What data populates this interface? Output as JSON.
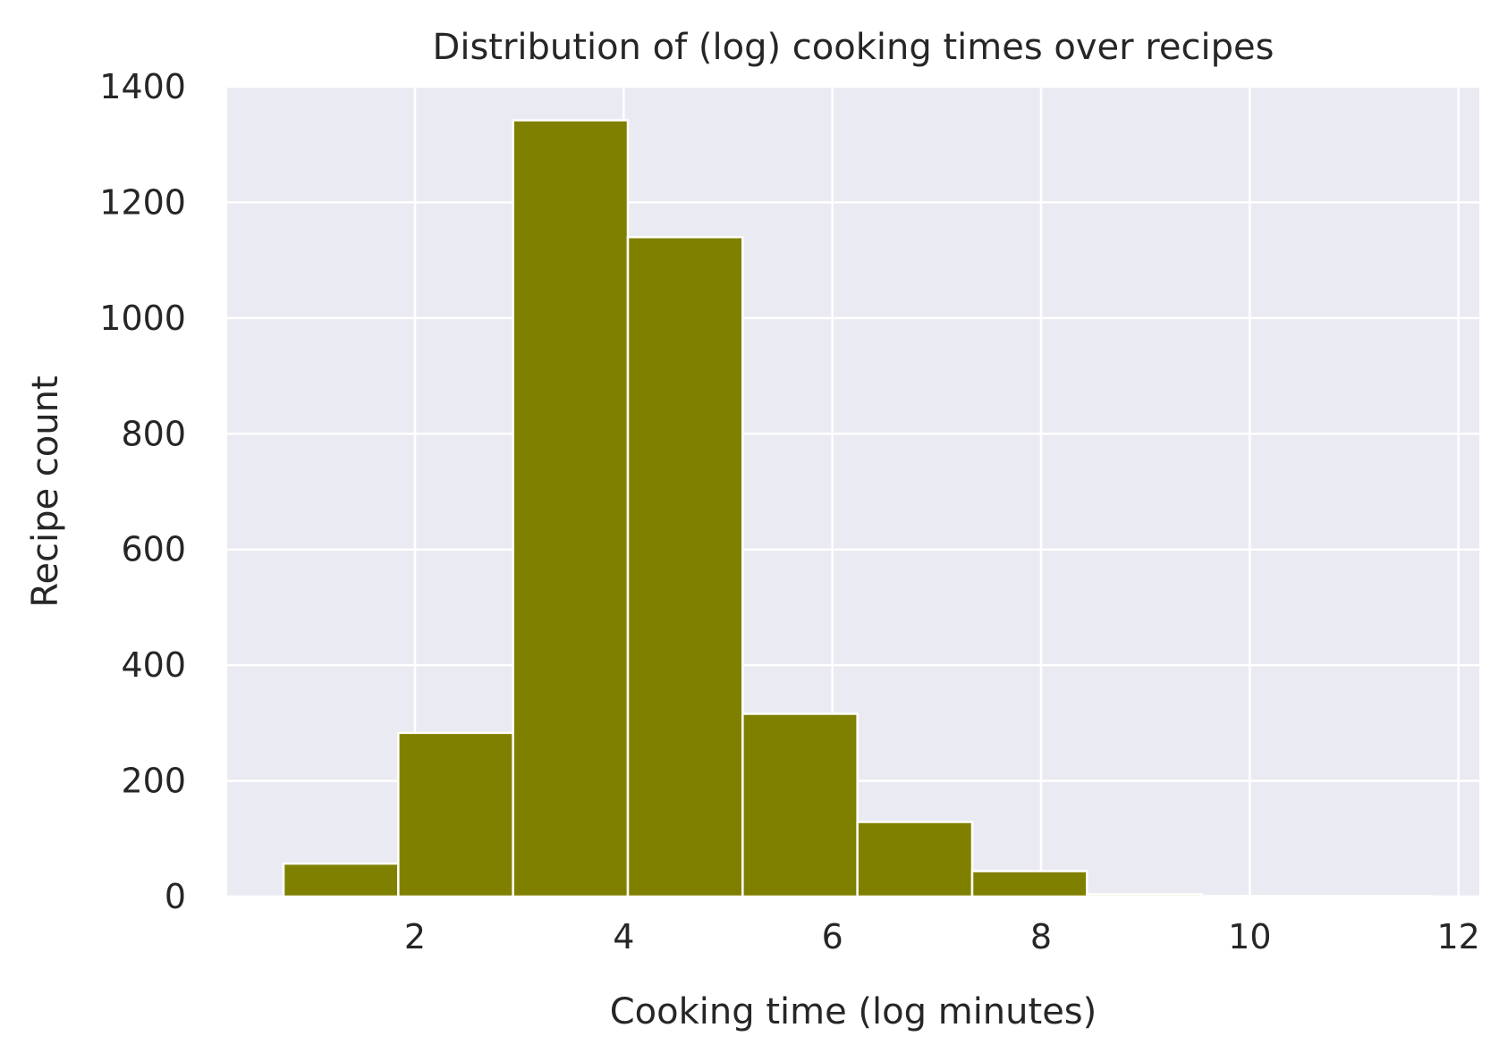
{
  "chart_data": {
    "type": "bar",
    "title": "Distribution of (log) cooking times over recipes",
    "xlabel": "Cooking time (log minutes)",
    "ylabel": "Recipe count",
    "xlim": [
      0.2,
      12.2
    ],
    "ylim": [
      0,
      1400
    ],
    "xticks": [
      2,
      4,
      6,
      8,
      10,
      12
    ],
    "yticks": [
      0,
      200,
      400,
      600,
      800,
      1000,
      1200,
      1400
    ],
    "xtick_labels": [
      "2",
      "4",
      "6",
      "8",
      "10",
      "12"
    ],
    "ytick_labels": [
      "0",
      "200",
      "400",
      "600",
      "800",
      "1000",
      "1200",
      "1400"
    ],
    "bins": [
      0.74,
      1.84,
      2.94,
      4.04,
      5.14,
      6.24,
      7.34,
      8.44,
      9.54,
      10.64,
      11.74
    ],
    "counts": [
      57,
      283,
      1342,
      1140,
      316,
      129,
      44,
      4,
      1,
      1
    ],
    "bar_color": "#808000",
    "bar_edge_color": "#ffffff",
    "background_color": "#eaeaf2",
    "grid": true,
    "grid_color": "#ffffff"
  }
}
